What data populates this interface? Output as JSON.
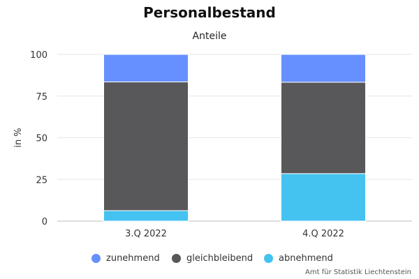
{
  "chart_data": {
    "type": "bar",
    "stacked": true,
    "title": "Personalbestand",
    "subtitle": "Anteile",
    "xlabel": "",
    "ylabel": "in %",
    "ylim": [
      0,
      100
    ],
    "yticks": [
      0,
      25,
      50,
      75,
      100
    ],
    "grid": true,
    "legend_position": "bottom",
    "categories": [
      "3.Q 2022",
      "4.Q 2022"
    ],
    "series": [
      {
        "name": "abnehmend",
        "color": "#44c2f0",
        "values": [
          6.3,
          28.5
        ]
      },
      {
        "name": "gleichbleibend",
        "color": "#58575a",
        "values": [
          77.2,
          54.8
        ]
      },
      {
        "name": "zunehmend",
        "color": "#6690ff",
        "values": [
          16.5,
          16.7
        ]
      }
    ],
    "legend_order": [
      "zunehmend",
      "gleichbleibend",
      "abnehmend"
    ]
  },
  "credit": "Amt für Statistik Liechtenstein"
}
